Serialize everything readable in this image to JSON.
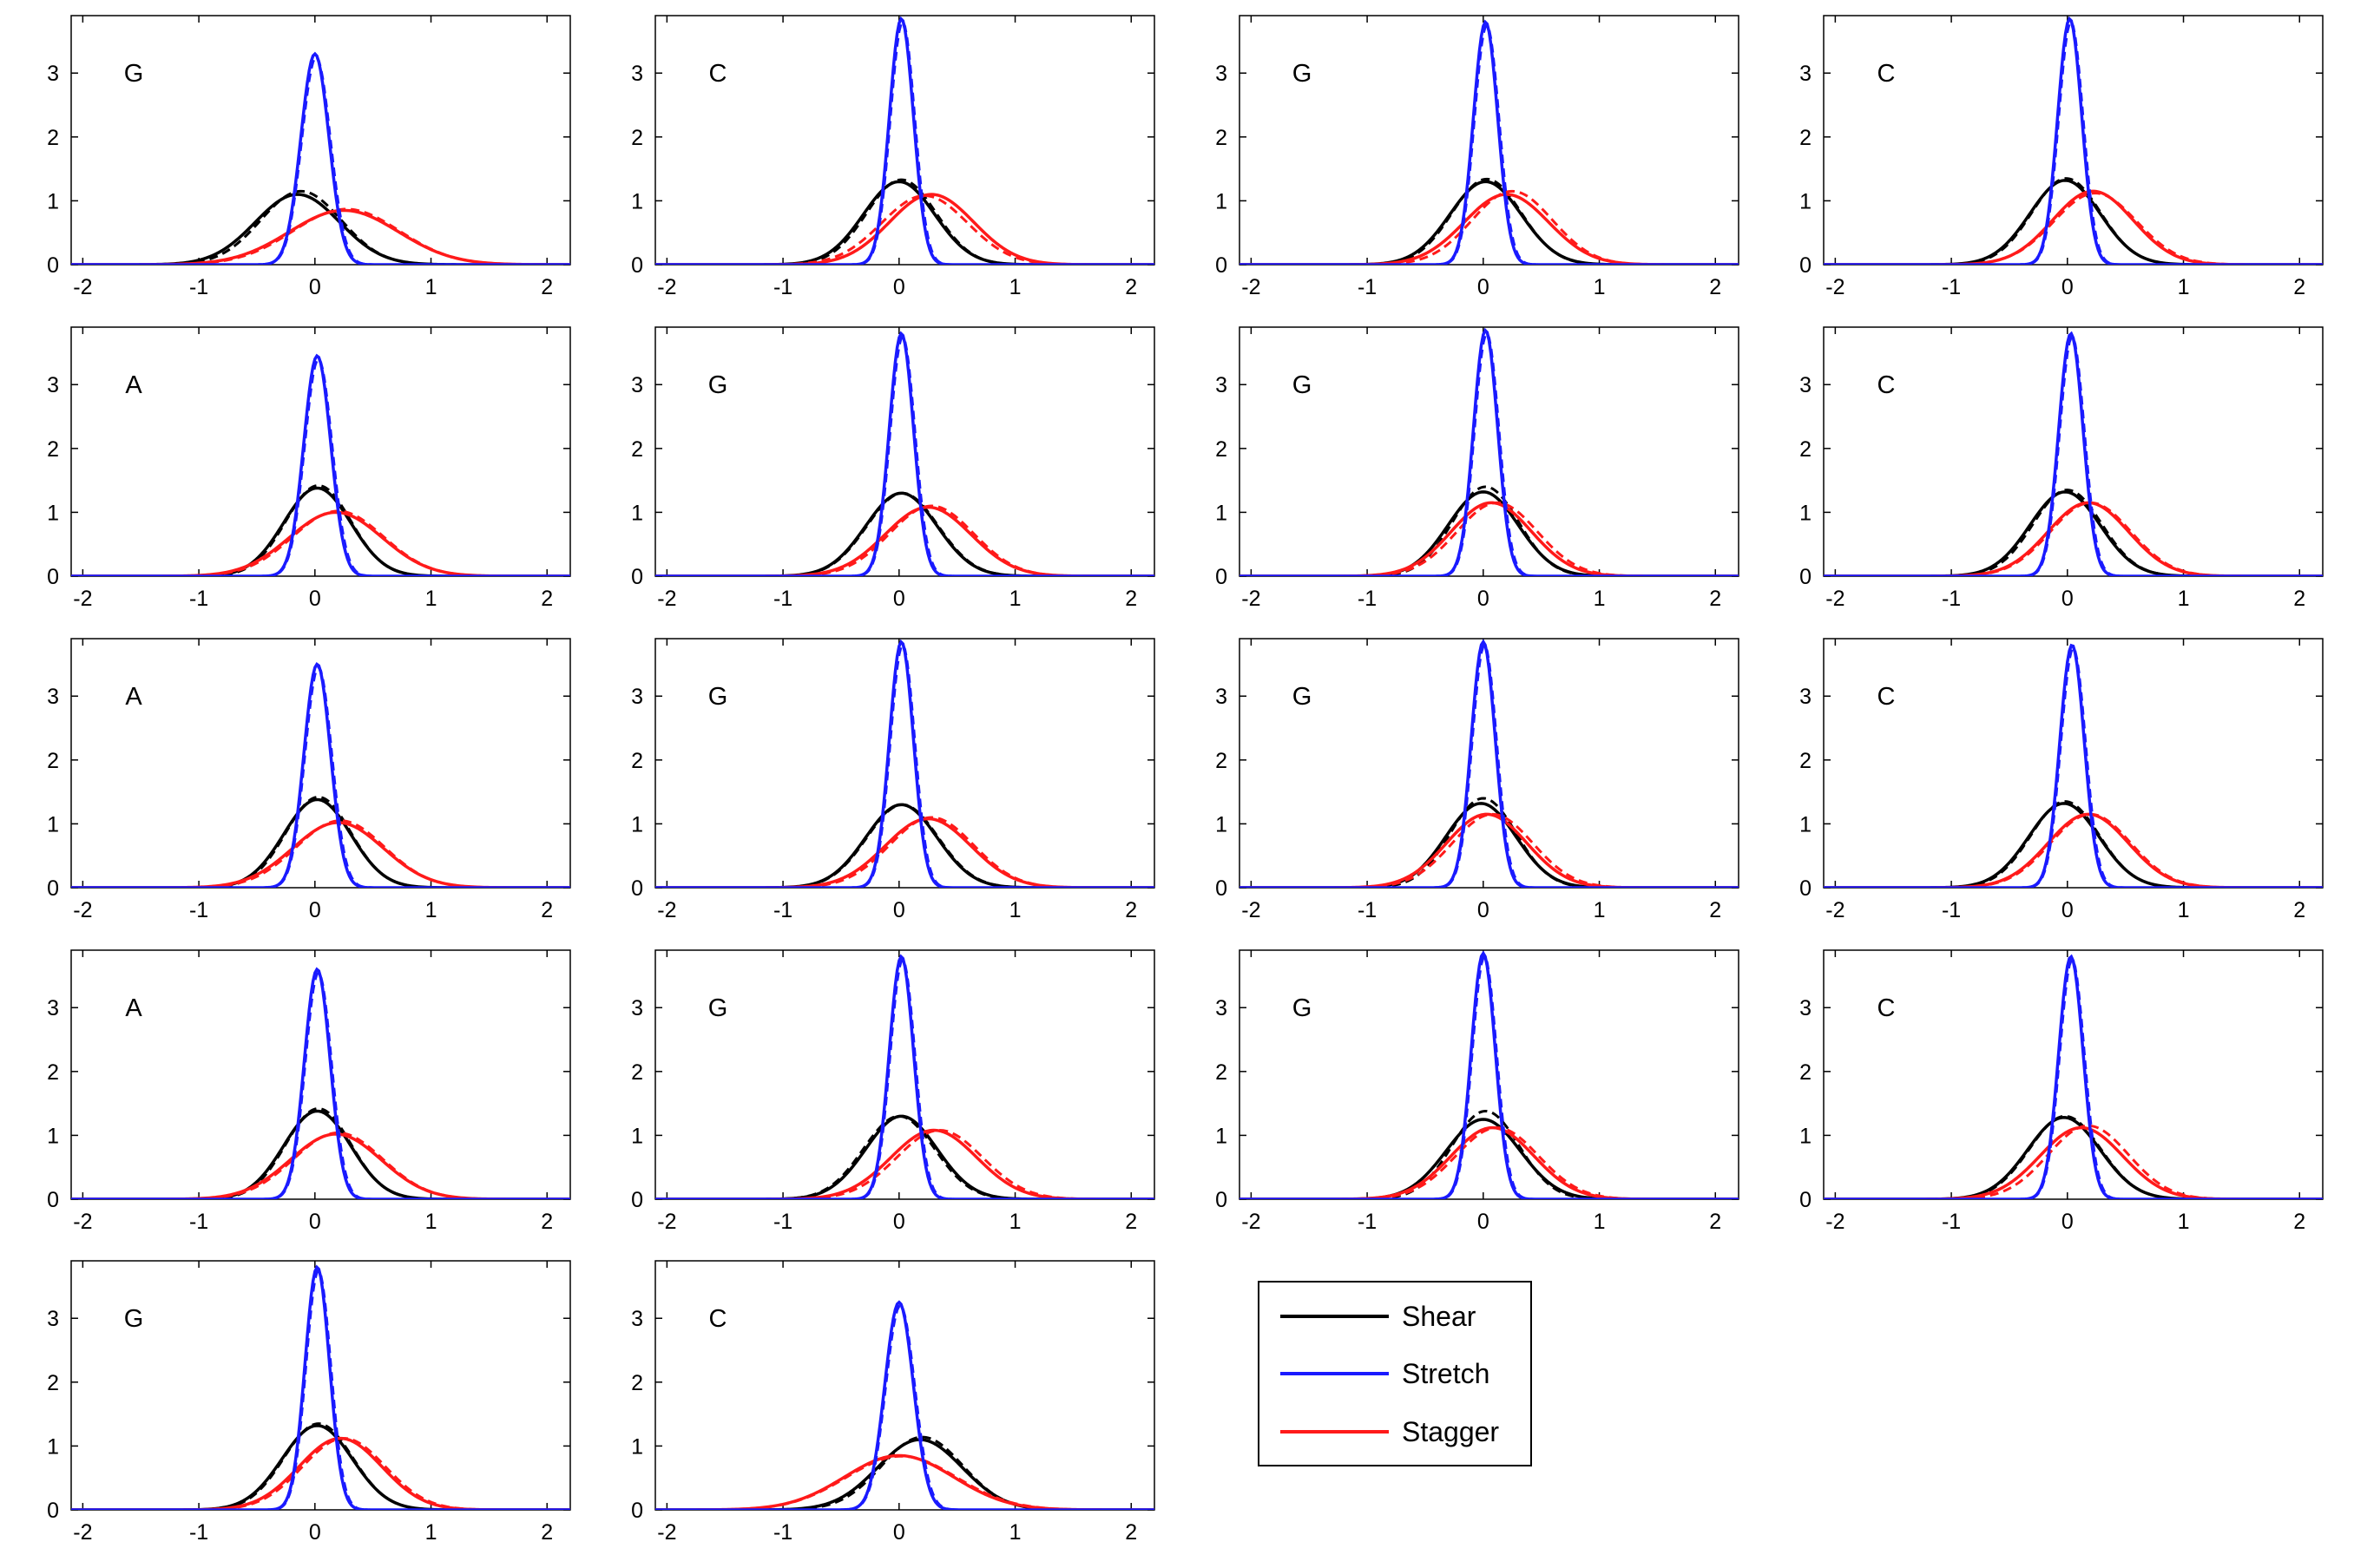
{
  "chart_data": {
    "type": "line",
    "grid": false,
    "xlim": [
      -2.1,
      2.2
    ],
    "ylim": [
      0,
      3.9
    ],
    "xticks": [
      "-2",
      "-1",
      "0",
      "1",
      "2"
    ],
    "yticks": [
      "0",
      "1",
      "2",
      "3"
    ],
    "colors": {
      "Shear": "#000000",
      "Stretch": "#1a1aff",
      "Stagger": "#ff1a1a"
    },
    "legend": {
      "placement": "lower-right",
      "entries": [
        {
          "label": "Shear",
          "color": "#000000"
        },
        {
          "label": "Stretch",
          "color": "#1a1aff"
        },
        {
          "label": "Stagger",
          "color": "#ff1a1a"
        }
      ]
    },
    "panels": [
      {
        "label": "G",
        "series": [
          {
            "name": "Shear",
            "mean": -0.15,
            "peak": 1.1,
            "dash_mean": -0.12,
            "dash_peak": 1.15
          },
          {
            "name": "Stretch",
            "mean": 0.0,
            "peak": 3.3,
            "dash_mean": 0.01,
            "dash_peak": 3.25
          },
          {
            "name": "Stagger",
            "mean": 0.25,
            "peak": 0.85,
            "dash_mean": 0.27,
            "dash_peak": 0.87
          }
        ]
      },
      {
        "label": "C",
        "series": [
          {
            "name": "Shear",
            "mean": 0.0,
            "peak": 1.3,
            "dash_mean": 0.02,
            "dash_peak": 1.33
          },
          {
            "name": "Stretch",
            "mean": 0.02,
            "peak": 3.85,
            "dash_mean": 0.03,
            "dash_peak": 3.8
          },
          {
            "name": "Stagger",
            "mean": 0.28,
            "peak": 1.1,
            "dash_mean": 0.22,
            "dash_peak": 1.08
          }
        ]
      },
      {
        "label": "G",
        "series": [
          {
            "name": "Shear",
            "mean": 0.02,
            "peak": 1.3,
            "dash_mean": 0.03,
            "dash_peak": 1.34
          },
          {
            "name": "Stretch",
            "mean": 0.02,
            "peak": 3.8,
            "dash_mean": 0.03,
            "dash_peak": 3.75
          },
          {
            "name": "Stagger",
            "mean": 0.2,
            "peak": 1.1,
            "dash_mean": 0.25,
            "dash_peak": 1.15
          }
        ]
      },
      {
        "label": "C",
        "series": [
          {
            "name": "Shear",
            "mean": -0.02,
            "peak": 1.32,
            "dash_mean": -0.01,
            "dash_peak": 1.35
          },
          {
            "name": "Stretch",
            "mean": 0.02,
            "peak": 3.85,
            "dash_mean": 0.03,
            "dash_peak": 3.8
          },
          {
            "name": "Stagger",
            "mean": 0.22,
            "peak": 1.15,
            "dash_mean": 0.24,
            "dash_peak": 1.12
          }
        ]
      },
      {
        "label": "A",
        "series": [
          {
            "name": "Shear",
            "mean": 0.02,
            "peak": 1.38,
            "dash_mean": 0.03,
            "dash_peak": 1.42
          },
          {
            "name": "Stretch",
            "mean": 0.02,
            "peak": 3.45,
            "dash_mean": 0.03,
            "dash_peak": 3.4
          },
          {
            "name": "Stagger",
            "mean": 0.18,
            "peak": 1.0,
            "dash_mean": 0.2,
            "dash_peak": 1.02
          }
        ]
      },
      {
        "label": "G",
        "series": [
          {
            "name": "Shear",
            "mean": 0.02,
            "peak": 1.3,
            "dash_mean": 0.03,
            "dash_peak": 1.3
          },
          {
            "name": "Stretch",
            "mean": 0.02,
            "peak": 3.8,
            "dash_mean": 0.03,
            "dash_peak": 3.75
          },
          {
            "name": "Stagger",
            "mean": 0.25,
            "peak": 1.08,
            "dash_mean": 0.28,
            "dash_peak": 1.1
          }
        ]
      },
      {
        "label": "G",
        "series": [
          {
            "name": "Shear",
            "mean": 0.0,
            "peak": 1.32,
            "dash_mean": 0.02,
            "dash_peak": 1.4
          },
          {
            "name": "Stretch",
            "mean": 0.02,
            "peak": 3.85,
            "dash_mean": 0.03,
            "dash_peak": 3.8
          },
          {
            "name": "Stagger",
            "mean": 0.07,
            "peak": 1.15,
            "dash_mean": 0.12,
            "dash_peak": 1.15
          }
        ]
      },
      {
        "label": "C",
        "series": [
          {
            "name": "Shear",
            "mean": -0.02,
            "peak": 1.32,
            "dash_mean": 0.0,
            "dash_peak": 1.35
          },
          {
            "name": "Stretch",
            "mean": 0.03,
            "peak": 3.8,
            "dash_mean": 0.04,
            "dash_peak": 3.75
          },
          {
            "name": "Stagger",
            "mean": 0.18,
            "peak": 1.15,
            "dash_mean": 0.2,
            "dash_peak": 1.15
          }
        ]
      },
      {
        "label": "A",
        "series": [
          {
            "name": "Shear",
            "mean": 0.02,
            "peak": 1.38,
            "dash_mean": 0.03,
            "dash_peak": 1.42
          },
          {
            "name": "Stretch",
            "mean": 0.02,
            "peak": 3.5,
            "dash_mean": 0.03,
            "dash_peak": 3.45
          },
          {
            "name": "Stagger",
            "mean": 0.2,
            "peak": 1.02,
            "dash_mean": 0.22,
            "dash_peak": 1.05
          }
        ]
      },
      {
        "label": "G",
        "series": [
          {
            "name": "Shear",
            "mean": 0.02,
            "peak": 1.3,
            "dash_mean": 0.03,
            "dash_peak": 1.3
          },
          {
            "name": "Stretch",
            "mean": 0.02,
            "peak": 3.85,
            "dash_mean": 0.03,
            "dash_peak": 3.8
          },
          {
            "name": "Stagger",
            "mean": 0.25,
            "peak": 1.08,
            "dash_mean": 0.28,
            "dash_peak": 1.1
          }
        ]
      },
      {
        "label": "G",
        "series": [
          {
            "name": "Shear",
            "mean": -0.02,
            "peak": 1.32,
            "dash_mean": 0.0,
            "dash_peak": 1.4
          },
          {
            "name": "Stretch",
            "mean": 0.0,
            "peak": 3.85,
            "dash_mean": 0.01,
            "dash_peak": 3.8
          },
          {
            "name": "Stagger",
            "mean": 0.03,
            "peak": 1.15,
            "dash_mean": 0.08,
            "dash_peak": 1.15
          }
        ]
      },
      {
        "label": "C",
        "series": [
          {
            "name": "Shear",
            "mean": -0.03,
            "peak": 1.32,
            "dash_mean": -0.02,
            "dash_peak": 1.35
          },
          {
            "name": "Stretch",
            "mean": 0.04,
            "peak": 3.8,
            "dash_mean": 0.05,
            "dash_peak": 3.75
          },
          {
            "name": "Stagger",
            "mean": 0.18,
            "peak": 1.15,
            "dash_mean": 0.2,
            "dash_peak": 1.15
          }
        ]
      },
      {
        "label": "A",
        "series": [
          {
            "name": "Shear",
            "mean": 0.02,
            "peak": 1.38,
            "dash_mean": 0.03,
            "dash_peak": 1.42
          },
          {
            "name": "Stretch",
            "mean": 0.02,
            "peak": 3.6,
            "dash_mean": 0.03,
            "dash_peak": 3.55
          },
          {
            "name": "Stagger",
            "mean": 0.18,
            "peak": 1.02,
            "dash_mean": 0.2,
            "dash_peak": 1.04
          }
        ]
      },
      {
        "label": "G",
        "series": [
          {
            "name": "Shear",
            "mean": 0.02,
            "peak": 1.3,
            "dash_mean": 0.0,
            "dash_peak": 1.3
          },
          {
            "name": "Stretch",
            "mean": 0.02,
            "peak": 3.8,
            "dash_mean": 0.03,
            "dash_peak": 3.75
          },
          {
            "name": "Stagger",
            "mean": 0.3,
            "peak": 1.08,
            "dash_mean": 0.35,
            "dash_peak": 1.08
          }
        ]
      },
      {
        "label": "G",
        "series": [
          {
            "name": "Shear",
            "mean": 0.0,
            "peak": 1.25,
            "dash_mean": 0.02,
            "dash_peak": 1.38
          },
          {
            "name": "Stretch",
            "mean": 0.0,
            "peak": 3.85,
            "dash_mean": 0.01,
            "dash_peak": 3.8
          },
          {
            "name": "Stagger",
            "mean": 0.08,
            "peak": 1.12,
            "dash_mean": 0.12,
            "dash_peak": 1.12
          }
        ]
      },
      {
        "label": "C",
        "series": [
          {
            "name": "Shear",
            "mean": -0.03,
            "peak": 1.28,
            "dash_mean": -0.02,
            "dash_peak": 1.3
          },
          {
            "name": "Stretch",
            "mean": 0.03,
            "peak": 3.8,
            "dash_mean": 0.04,
            "dash_peak": 3.75
          },
          {
            "name": "Stagger",
            "mean": 0.12,
            "peak": 1.12,
            "dash_mean": 0.18,
            "dash_peak": 1.15
          }
        ]
      },
      {
        "label": "G",
        "series": [
          {
            "name": "Shear",
            "mean": 0.02,
            "peak": 1.32,
            "dash_mean": 0.03,
            "dash_peak": 1.35
          },
          {
            "name": "Stretch",
            "mean": 0.02,
            "peak": 3.8,
            "dash_mean": 0.03,
            "dash_peak": 3.75
          },
          {
            "name": "Stagger",
            "mean": 0.22,
            "peak": 1.12,
            "dash_mean": 0.25,
            "dash_peak": 1.12
          }
        ]
      },
      {
        "label": "C",
        "series": [
          {
            "name": "Shear",
            "mean": 0.18,
            "peak": 1.1,
            "dash_mean": 0.2,
            "dash_peak": 1.14
          },
          {
            "name": "Stretch",
            "mean": 0.0,
            "peak": 3.25,
            "dash_mean": 0.01,
            "dash_peak": 3.2
          },
          {
            "name": "Stagger",
            "mean": 0.0,
            "peak": 0.85,
            "dash_mean": 0.02,
            "dash_peak": 0.84
          }
        ]
      }
    ]
  }
}
